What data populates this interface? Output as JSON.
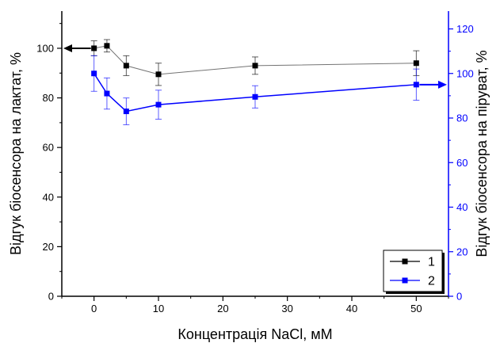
{
  "chart_data": {
    "type": "line",
    "xlabel": "Концентрація NaCl, мМ",
    "ylabel_left": "Відгук біосенсора на лактат, %",
    "ylabel_right": "Відгук біосенсора на піруват, %",
    "xlim": [
      -5,
      55
    ],
    "ylim_left": [
      0,
      115
    ],
    "ylim_right": [
      0,
      128
    ],
    "x_ticks": [
      0,
      10,
      20,
      30,
      40,
      50
    ],
    "y_ticks_left": [
      0,
      20,
      40,
      60,
      80,
      100
    ],
    "y_ticks_right": [
      0,
      20,
      40,
      60,
      80,
      100,
      120
    ],
    "grid": false,
    "legend_position": "bottom-right",
    "series": [
      {
        "name": "1",
        "axis": "left",
        "color": "#000000",
        "x": [
          0,
          2,
          5,
          10,
          25,
          50
        ],
        "y": [
          100,
          101,
          93,
          89.5,
          93,
          94
        ],
        "err": [
          3,
          2.5,
          4,
          4.5,
          3.5,
          5
        ]
      },
      {
        "name": "2",
        "axis": "right",
        "color": "#0000ff",
        "x": [
          0,
          2,
          5,
          10,
          25,
          50
        ],
        "y": [
          100,
          91,
          83,
          86,
          89.5,
          95
        ],
        "err": [
          8,
          7,
          6,
          6.5,
          5,
          7
        ]
      }
    ]
  }
}
